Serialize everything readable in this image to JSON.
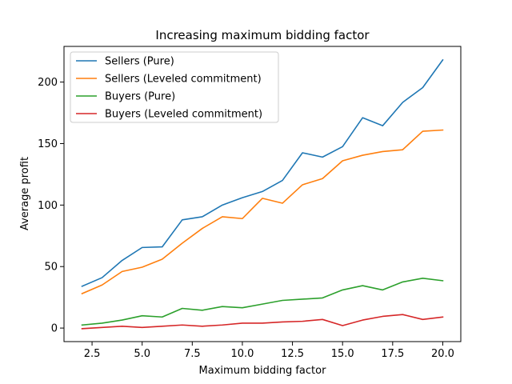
{
  "chart_data": {
    "type": "line",
    "title": "Increasing maximum bidding factor",
    "xlabel": "Maximum bidding factor",
    "ylabel": "Average profit",
    "xlim": [
      1.1,
      20.9
    ],
    "ylim": [
      -11,
      229
    ],
    "xticks": [
      2.5,
      5.0,
      7.5,
      10.0,
      12.5,
      15.0,
      17.5,
      20.0
    ],
    "xtick_labels": [
      "2.5",
      "5.0",
      "7.5",
      "10.0",
      "12.5",
      "15.0",
      "17.5",
      "20.0"
    ],
    "yticks": [
      0,
      50,
      100,
      150,
      200
    ],
    "ytick_labels": [
      "0",
      "50",
      "100",
      "150",
      "200"
    ],
    "grid": false,
    "legend_position": "top-left",
    "x": [
      2,
      3,
      4,
      5,
      6,
      7,
      8,
      9,
      10,
      11,
      12,
      13,
      14,
      15,
      16,
      17,
      18,
      19,
      20
    ],
    "series": [
      {
        "name": "Sellers (Pure)",
        "color": "#1f77b4",
        "values": [
          34,
          41,
          55,
          65.5,
          66,
          88,
          90.5,
          100,
          106,
          111,
          120,
          142.5,
          139,
          147.5,
          171,
          164.5,
          183.5,
          195.5,
          218
        ]
      },
      {
        "name": "Sellers (Leveled commitment)",
        "color": "#ff7f0e",
        "values": [
          28,
          35,
          46,
          49.5,
          56,
          69,
          81,
          90.5,
          89,
          105.5,
          101.5,
          116.5,
          121.5,
          136,
          140.5,
          143.5,
          145,
          160,
          161
        ]
      },
      {
        "name": "Buyers (Pure)",
        "color": "#2ca02c",
        "values": [
          2.5,
          4,
          6.5,
          10,
          9,
          16,
          14.5,
          17.5,
          16.5,
          19.5,
          22.5,
          23.5,
          24.5,
          31,
          34.5,
          31,
          37.5,
          40.5,
          38.5
        ]
      },
      {
        "name": "Buyers (Leveled commitment)",
        "color": "#d62728",
        "values": [
          -0.5,
          0.5,
          1.5,
          0.5,
          1.5,
          2.5,
          1.5,
          2.5,
          4,
          4,
          5,
          5.5,
          7,
          2,
          6.5,
          9.5,
          11,
          7,
          9
        ]
      }
    ]
  }
}
